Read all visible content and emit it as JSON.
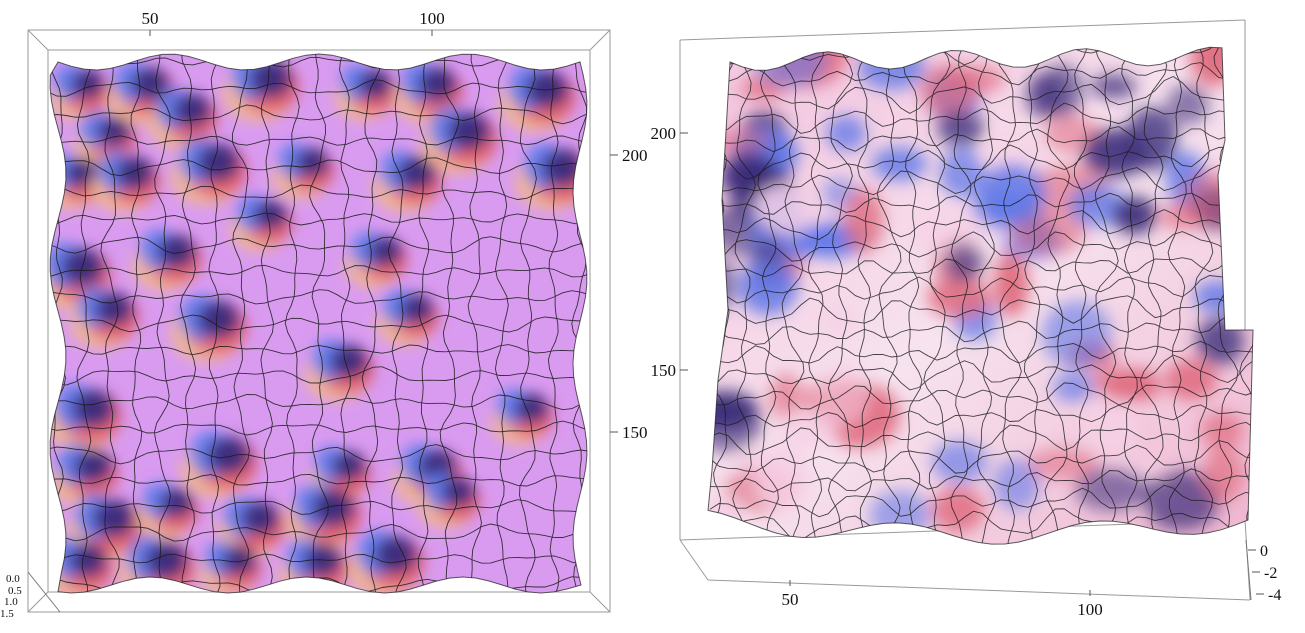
{
  "chart_data": [
    {
      "type": "surface3d",
      "view": "top-down",
      "x_ticks": [
        50,
        100
      ],
      "y_ticks": [
        150,
        200
      ],
      "z_ticks": [
        "0.0",
        "0.5",
        "1.0",
        "1.5"
      ],
      "grid": "on",
      "legend": "none",
      "colors": {
        "base": "#d99bf0",
        "bump_light": "#f2b98a",
        "bump_mid": "#e3566b",
        "bump_dark": "#3c2a7a",
        "bump_cool": "#5b7cf0",
        "mesh": "#1a1a1a"
      }
    },
    {
      "type": "surface3d",
      "view": "oblique",
      "x_ticks": [
        50,
        100
      ],
      "y_ticks": [
        150,
        200
      ],
      "z_ticks": [
        "0",
        "-2",
        "-4"
      ],
      "grid": "on",
      "legend": "none",
      "colors": {
        "light": "#f6d0e6",
        "warm": "#e06a7e",
        "cool": "#5d76e8",
        "dark": "#3a2a78",
        "mesh": "#1a1a1a"
      }
    }
  ]
}
